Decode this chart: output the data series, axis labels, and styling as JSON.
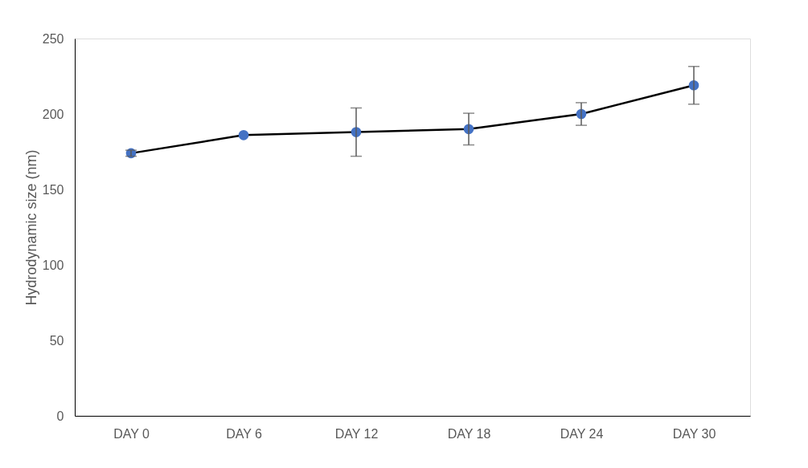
{
  "chart_data": {
    "type": "line",
    "ylabel": "Hydrodynamic size (nm)",
    "categories": [
      "DAY 0",
      "DAY 6",
      "DAY 12",
      "DAY 18",
      "DAY 24",
      "DAY 30"
    ],
    "series": [
      {
        "color": "#4472c4",
        "values": [
          174,
          186,
          188,
          190,
          200,
          219
        ],
        "errors": [
          2,
          null,
          16,
          10.5,
          7.5,
          12.5
        ]
      }
    ],
    "ylim": [
      0,
      250
    ],
    "yticks": [
      0,
      50,
      100,
      150,
      200,
      250
    ],
    "grid": false,
    "marker": "circle",
    "line_style": "solid"
  }
}
